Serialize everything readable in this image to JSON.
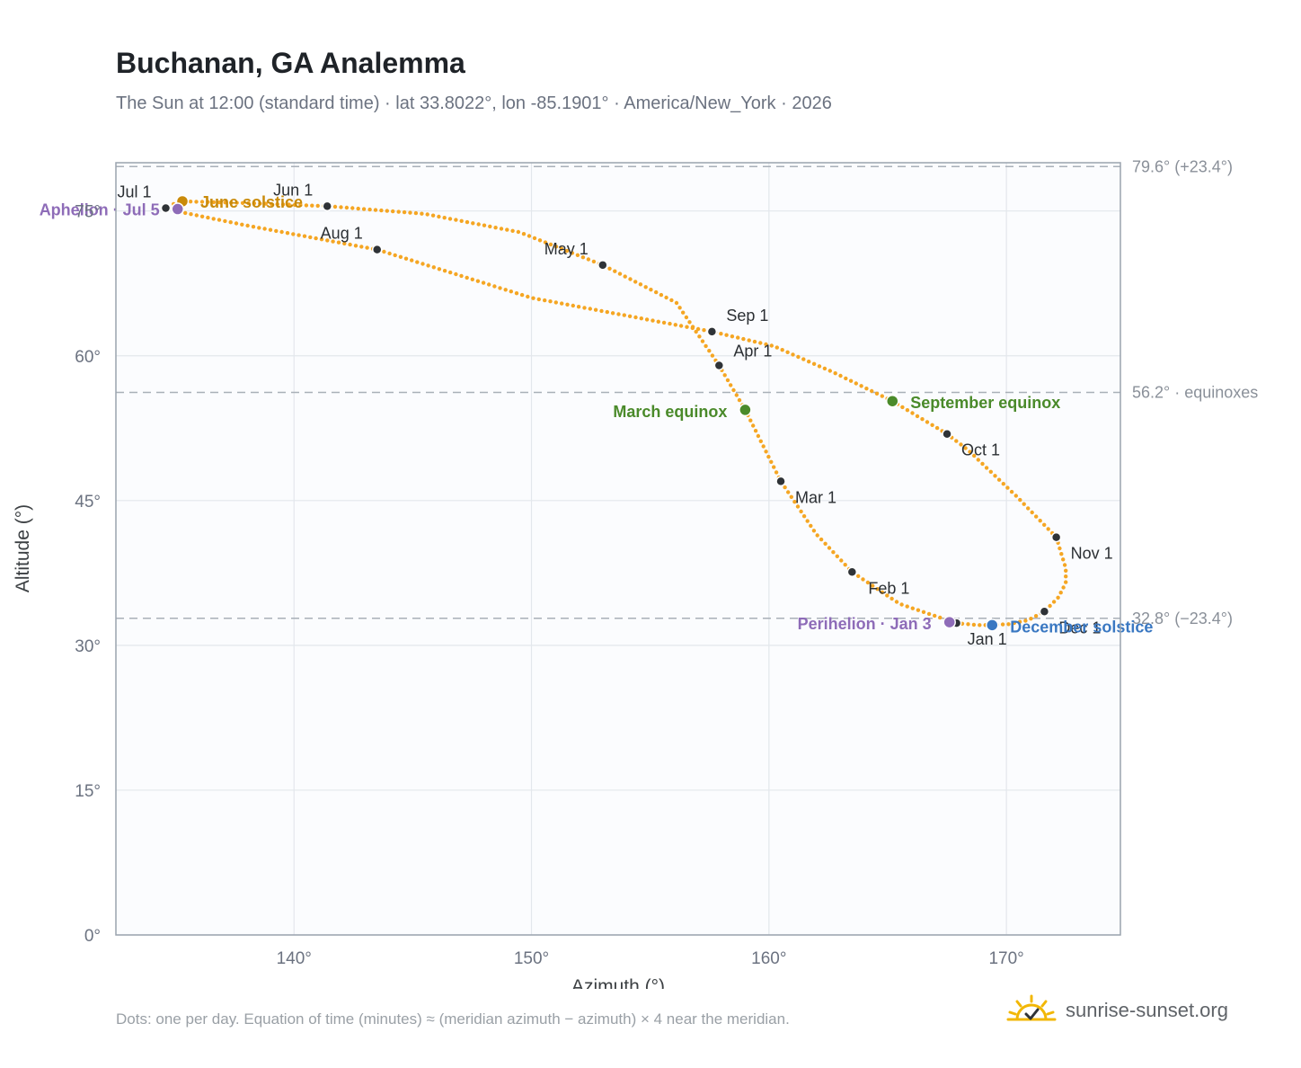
{
  "header": {
    "title": "Buchanan, GA Analemma",
    "subtitle": "The Sun at 12:00 (standard time) · lat 33.8022°, lon -85.1901° · America/New_York · 2026"
  },
  "footer": {
    "note": "Dots: one per day. Equation of time (minutes) ≈ (meridian azimuth − azimuth) × 4 near the meridian.",
    "brand": "sunrise-sunset.org"
  },
  "chart_data": {
    "type": "scatter",
    "title": "Buchanan, GA Analemma",
    "xlabel": "Azimuth (°)",
    "ylabel": "Altitude (°)",
    "xlim": [
      132.5,
      174.8
    ],
    "ylim": [
      0,
      80
    ],
    "xticks": [
      140,
      150,
      160,
      170
    ],
    "xtick_labels": [
      "140°",
      "150°",
      "160°",
      "170°"
    ],
    "yticks": [
      0,
      15,
      30,
      45,
      60,
      75
    ],
    "ytick_labels": [
      "0°",
      "15°",
      "30°",
      "45°",
      "60°",
      "75°"
    ],
    "grid": true,
    "reference_lines": [
      {
        "altitude": 79.6,
        "label": "79.6° (+23.4°)"
      },
      {
        "altitude": 56.2,
        "label": "56.2° · equinoxes"
      },
      {
        "altitude": 32.8,
        "label": "32.8° (−23.4°)"
      }
    ],
    "analemma_path": [
      [
        167.9,
        32.3
      ],
      [
        168.8,
        32.1
      ],
      [
        169.4,
        32.1
      ],
      [
        170.1,
        32.2
      ],
      [
        170.9,
        32.6
      ],
      [
        171.6,
        33.5
      ],
      [
        172.2,
        35.0
      ],
      [
        172.5,
        36.5
      ],
      [
        172.5,
        38.0
      ],
      [
        172.1,
        41.2
      ],
      [
        170.4,
        45.5
      ],
      [
        168.4,
        50.2
      ],
      [
        167.5,
        51.9
      ],
      [
        165.2,
        55.3
      ],
      [
        162.7,
        58.3
      ],
      [
        160.2,
        61.0
      ],
      [
        157.6,
        62.5
      ],
      [
        150.0,
        66.0
      ],
      [
        143.5,
        71.0
      ],
      [
        138.0,
        73.5
      ],
      [
        135.0,
        75.0
      ],
      [
        134.6,
        75.3
      ],
      [
        134.9,
        75.7
      ],
      [
        135.3,
        76.0
      ],
      [
        138.3,
        75.8
      ],
      [
        141.4,
        75.5
      ],
      [
        145.5,
        74.7
      ],
      [
        149.5,
        72.8
      ],
      [
        153.0,
        69.4
      ],
      [
        156.1,
        65.5
      ],
      [
        157.9,
        59.0
      ],
      [
        159.0,
        54.4
      ],
      [
        160.5,
        47.0
      ],
      [
        162.0,
        41.5
      ],
      [
        163.5,
        37.6
      ],
      [
        165.5,
        34.3
      ],
      [
        167.9,
        32.3
      ]
    ],
    "month_markers": [
      {
        "label": "Jan 1",
        "azimuth": 167.9,
        "altitude": 32.3
      },
      {
        "label": "Feb 1",
        "azimuth": 163.5,
        "altitude": 37.6
      },
      {
        "label": "Mar 1",
        "azimuth": 160.5,
        "altitude": 47.0
      },
      {
        "label": "Apr 1",
        "azimuth": 157.9,
        "altitude": 59.0
      },
      {
        "label": "May 1",
        "azimuth": 153.0,
        "altitude": 69.4
      },
      {
        "label": "Jun 1",
        "azimuth": 141.4,
        "altitude": 75.5
      },
      {
        "label": "Jul 1",
        "azimuth": 134.6,
        "altitude": 75.3
      },
      {
        "label": "Aug 1",
        "azimuth": 143.5,
        "altitude": 71.0
      },
      {
        "label": "Sep 1",
        "azimuth": 157.6,
        "altitude": 62.5
      },
      {
        "label": "Oct 1",
        "azimuth": 167.5,
        "altitude": 51.9
      },
      {
        "label": "Nov 1",
        "azimuth": 172.1,
        "altitude": 41.2
      },
      {
        "label": "Dec 1",
        "azimuth": 171.6,
        "altitude": 33.5
      }
    ],
    "events": [
      {
        "label": "March equinox",
        "azimuth": 159.0,
        "altitude": 54.4,
        "color": "#4a8a2a"
      },
      {
        "label": "June solstice",
        "azimuth": 135.3,
        "altitude": 76.0,
        "color": "#c98a0a"
      },
      {
        "label": "September equinox",
        "azimuth": 165.2,
        "altitude": 55.3,
        "color": "#4a8a2a"
      },
      {
        "label": "December solstice",
        "azimuth": 169.4,
        "altitude": 32.1,
        "color": "#3a78c2"
      },
      {
        "label": "Perihelion · Jan 3",
        "azimuth": 167.6,
        "altitude": 32.4,
        "color": "#8e6cb8"
      },
      {
        "label": "Aphelion · Jul 5",
        "azimuth": 135.1,
        "altitude": 75.2,
        "color": "#8e6cb8"
      }
    ],
    "colors": {
      "curve": "#f5a623",
      "marker": "#2f3337",
      "plot_bg": "#fbfcfe",
      "frame": "#9aa3ae",
      "grid": "#e3e7ec",
      "reference": "#a9b0b8"
    }
  }
}
